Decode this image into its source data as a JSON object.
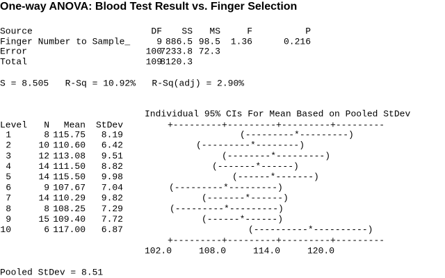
{
  "title": "One-way ANOVA: Blood Test Result vs. Finger Selection",
  "anova": {
    "header": [
      "Source",
      "DF",
      "SS",
      "MS",
      "F",
      "P"
    ],
    "rows": [
      [
        "Finger Number to Sample_",
        "9",
        "886.5",
        "98.5",
        "1.36",
        "0.216"
      ],
      [
        "Error",
        "100",
        "7233.8",
        "72.3"
      ],
      [
        "Total",
        "109",
        "8120.3"
      ]
    ]
  },
  "summary": "S = 8.505   R-Sq = 10.92%   R-Sq(adj) = 2.90%",
  "ci_table": {
    "caption": "Individual 95% CIs For Mean Based on Pooled StDev",
    "header": [
      "Level",
      "N",
      "Mean",
      "StDev"
    ],
    "axis_top": "+---------+---------+---------+---------",
    "rows": [
      {
        "cells": [
          "1",
          "8",
          "115.75",
          "8.19"
        ],
        "interval": "(---------*---------)"
      },
      {
        "cells": [
          "2",
          "10",
          "110.60",
          "6.42"
        ],
        "interval": "(---------*--------)"
      },
      {
        "cells": [
          "3",
          "12",
          "113.08",
          "9.51"
        ],
        "interval": "(--------*---------)"
      },
      {
        "cells": [
          "4",
          "14",
          "111.50",
          "8.82"
        ],
        "interval": "(-------*------)"
      },
      {
        "cells": [
          "5",
          "14",
          "115.50",
          "9.98"
        ],
        "interval": "(------*-------)"
      },
      {
        "cells": [
          "6",
          "9",
          "107.67",
          "7.04"
        ],
        "interval": "(---------*---------)"
      },
      {
        "cells": [
          "7",
          "14",
          "110.29",
          "9.82"
        ],
        "interval": "(-------*------)"
      },
      {
        "cells": [
          "8",
          "8",
          "108.25",
          "7.29"
        ],
        "interval": "(---------*---------)"
      },
      {
        "cells": [
          "9",
          "15",
          "109.40",
          "7.72"
        ],
        "interval": "(------*------)"
      },
      {
        "cells": [
          "10",
          "6",
          "117.00",
          "6.87"
        ],
        "interval": "(----------*----------)"
      }
    ],
    "axis_bottom": "+---------+---------+---------+---------",
    "axis_labels": [
      "102.0",
      "108.0",
      "114.0",
      "120.0"
    ]
  },
  "pooled": "Pooled StDev = 8.51"
}
